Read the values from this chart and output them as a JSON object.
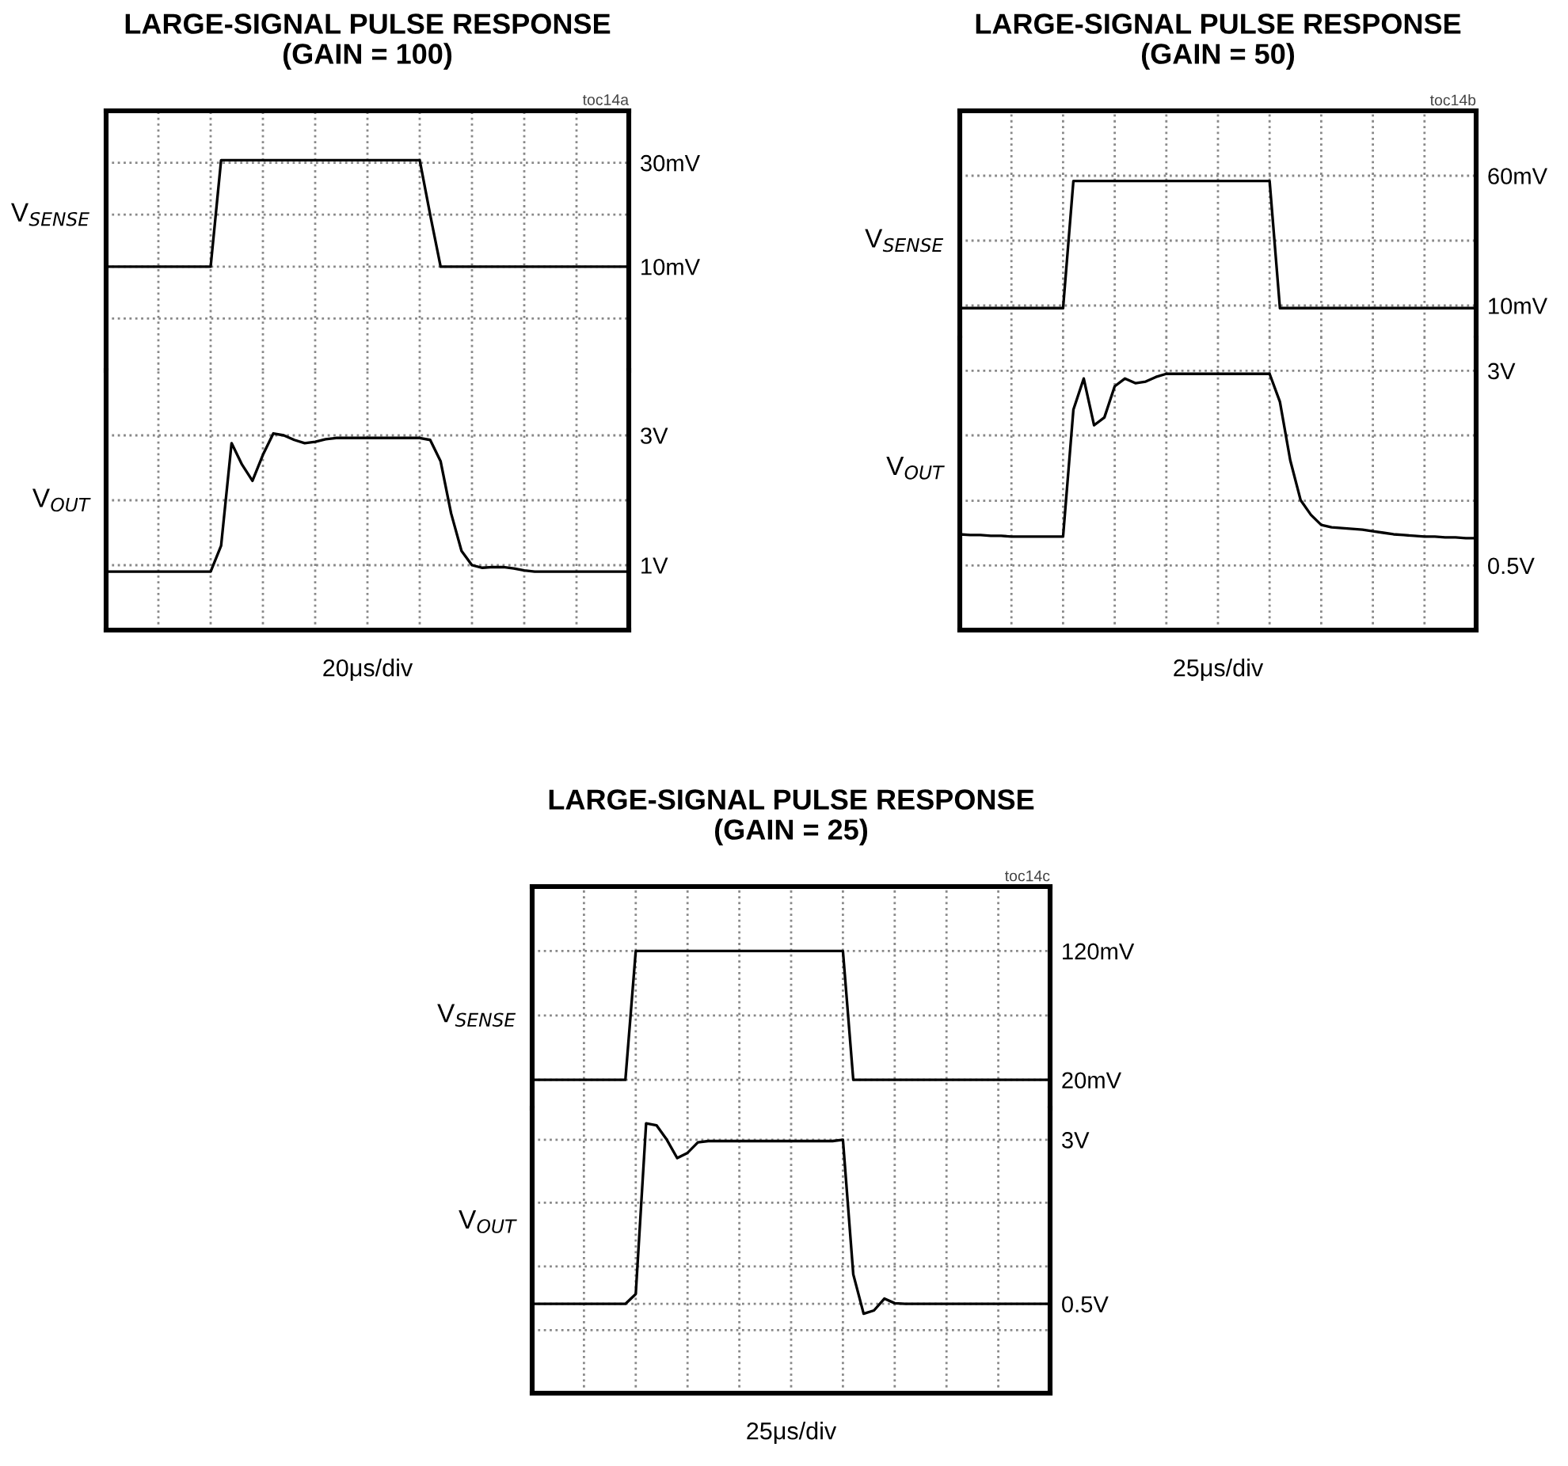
{
  "chart_data": [
    {
      "type": "line",
      "title": "LARGE-SIGNAL PULSE RESPONSE",
      "subtitle": "(GAIN = 100)",
      "annotations": [
        "toc14a"
      ],
      "categories": [
        null,
        null,
        null,
        null,
        null,
        null,
        null,
        null,
        null,
        null,
        null,
        null,
        null,
        null,
        null,
        null,
        null,
        null,
        null,
        null,
        null,
        null,
        null,
        null,
        null,
        null,
        null,
        null,
        null,
        null,
        null,
        null,
        null,
        null,
        null,
        null,
        null,
        null,
        null,
        null,
        null,
        null,
        null,
        null,
        null,
        null,
        null,
        null,
        null,
        null,
        null
      ],
      "ylim": [
        -10,
        40
      ],
      "yticks": [
        {
          "value": 0,
          "label": null
        },
        {
          "value": 10,
          "label": "10mV"
        },
        {
          "value": 20,
          "label": null
        },
        {
          "value": 30,
          "label": "30mV"
        }
      ],
      "grid": true,
      "tick_labels": "y",
      "line_style": "solid",
      "series": [
        {
          "name": "V$_{SENSE}$",
          "color": "#000000",
          "values": [
            10,
            10,
            10,
            10,
            10,
            10,
            10,
            10,
            10,
            10,
            10,
            30.5,
            30.5,
            30.5,
            30.5,
            30.5,
            30.5,
            30.5,
            30.5,
            30.5,
            30.5,
            30.5,
            30.5,
            30.5,
            30.5,
            30.5,
            30.5,
            30.5,
            30.5,
            30.5,
            30.5,
            20,
            10,
            10,
            10,
            10,
            10,
            10,
            10,
            10,
            10,
            10,
            10,
            10,
            10,
            10,
            10,
            10,
            10,
            10,
            10
          ]
        }
      ]
    },
    {
      "type": "line",
      "xlabel": "20μs/div",
      "categories": [
        null,
        null,
        null,
        null,
        null,
        null,
        null,
        null,
        null,
        null,
        null,
        null,
        null,
        null,
        null,
        null,
        null,
        null,
        null,
        null,
        null,
        null,
        null,
        null,
        null,
        null,
        null,
        null,
        null,
        null,
        null,
        null,
        null,
        null,
        null,
        null,
        null,
        null,
        null,
        null,
        null,
        null,
        null,
        null,
        null,
        null,
        null,
        null,
        null,
        null,
        null
      ],
      "ylim": [
        0,
        4
      ],
      "yticks": [
        {
          "value": 1,
          "label": "1V"
        },
        {
          "value": 2,
          "label": null
        },
        {
          "value": 3,
          "label": "3V"
        }
      ],
      "grid": true,
      "tick_labels": "y",
      "line_style": "solid",
      "series": [
        {
          "name": "V$_{OUT}$",
          "color": "#000000",
          "values": [
            0.9,
            0.9,
            0.9,
            0.9,
            0.9,
            0.9,
            0.9,
            0.9,
            0.9,
            0.9,
            0.9,
            1.3,
            2.88,
            2.55,
            2.3,
            2.7,
            3.03,
            3.0,
            2.93,
            2.88,
            2.9,
            2.94,
            2.96,
            2.96,
            2.96,
            2.96,
            2.96,
            2.96,
            2.96,
            2.96,
            2.96,
            2.93,
            2.6,
            1.8,
            1.22,
            1.0,
            0.96,
            0.97,
            0.97,
            0.95,
            0.92,
            0.9,
            0.9,
            0.9,
            0.9,
            0.9,
            0.9,
            0.9,
            0.9,
            0.9,
            0.9
          ]
        }
      ]
    },
    {
      "type": "line",
      "title": "LARGE-SIGNAL PULSE RESPONSE",
      "subtitle": "(GAIN = 50)",
      "annotations": [
        "toc14b"
      ],
      "categories": [
        null,
        null,
        null,
        null,
        null,
        null,
        null,
        null,
        null,
        null,
        null,
        null,
        null,
        null,
        null,
        null,
        null,
        null,
        null,
        null,
        null,
        null,
        null,
        null,
        null,
        null,
        null,
        null,
        null,
        null,
        null,
        null,
        null,
        null,
        null,
        null,
        null,
        null,
        null,
        null,
        null,
        null,
        null,
        null,
        null,
        null,
        null,
        null,
        null,
        null,
        null
      ],
      "ylim": [
        -2.5,
        85
      ],
      "yticks": [
        {
          "value": 10,
          "label": "10mV"
        },
        {
          "value": 35,
          "label": null
        },
        {
          "value": 60,
          "label": "60mV"
        }
      ],
      "grid": true,
      "tick_labels": "y",
      "line_style": "solid",
      "series": [
        {
          "name": "V$_{SENSE}$",
          "color": "#000000",
          "values": [
            9,
            9,
            9,
            9,
            9,
            9,
            9,
            9,
            9,
            9,
            9,
            58,
            58,
            58,
            58,
            58,
            58,
            58,
            58,
            58,
            58,
            58,
            58,
            58,
            58,
            58,
            58,
            58,
            58,
            58,
            58,
            9,
            9,
            9,
            9,
            9,
            9,
            9,
            9,
            9,
            9,
            9,
            9,
            9,
            9,
            9,
            9,
            9,
            9,
            9,
            9
          ]
        }
      ]
    },
    {
      "type": "line",
      "xlabel": "25μs/div",
      "categories": [
        null,
        null,
        null,
        null,
        null,
        null,
        null,
        null,
        null,
        null,
        null,
        null,
        null,
        null,
        null,
        null,
        null,
        null,
        null,
        null,
        null,
        null,
        null,
        null,
        null,
        null,
        null,
        null,
        null,
        null,
        null,
        null,
        null,
        null,
        null,
        null,
        null,
        null,
        null,
        null,
        null,
        null,
        null,
        null,
        null,
        null,
        null,
        null,
        null,
        null,
        null
      ],
      "ylim": [
        -0.33,
        3.42
      ],
      "yticks": [
        {
          "value": 0.5,
          "label": "0.5V"
        },
        {
          "value": 1.33,
          "label": null
        },
        {
          "value": 2.17,
          "label": null
        },
        {
          "value": 3,
          "label": "3V"
        }
      ],
      "grid": true,
      "tick_labels": "y",
      "line_style": "solid",
      "series": [
        {
          "name": "V$_{OUT}$",
          "color": "#000000",
          "values": [
            0.9,
            0.89,
            0.89,
            0.88,
            0.88,
            0.87,
            0.87,
            0.87,
            0.87,
            0.87,
            0.87,
            2.5,
            2.9,
            2.3,
            2.4,
            2.8,
            2.9,
            2.84,
            2.86,
            2.92,
            2.96,
            2.96,
            2.96,
            2.96,
            2.96,
            2.96,
            2.96,
            2.96,
            2.96,
            2.96,
            2.96,
            2.6,
            1.85,
            1.34,
            1.15,
            1.02,
            0.99,
            0.98,
            0.97,
            0.96,
            0.94,
            0.92,
            0.9,
            0.89,
            0.88,
            0.87,
            0.87,
            0.86,
            0.86,
            0.85,
            0.85
          ]
        }
      ]
    },
    {
      "type": "line",
      "title": "LARGE-SIGNAL PULSE RESPONSE",
      "subtitle": "(GAIN = 25)",
      "annotations": [
        "toc14c"
      ],
      "categories": [
        null,
        null,
        null,
        null,
        null,
        null,
        null,
        null,
        null,
        null,
        null,
        null,
        null,
        null,
        null,
        null,
        null,
        null,
        null,
        null,
        null,
        null,
        null,
        null,
        null,
        null,
        null,
        null,
        null,
        null,
        null,
        null,
        null,
        null,
        null,
        null,
        null,
        null,
        null,
        null,
        null,
        null,
        null,
        null,
        null,
        null,
        null,
        null,
        null,
        null,
        null
      ],
      "ylim": [
        -2,
        170
      ],
      "yticks": [
        {
          "value": 20,
          "label": "20mV"
        },
        {
          "value": 70,
          "label": null
        },
        {
          "value": 120,
          "label": "120mV"
        }
      ],
      "grid": true,
      "tick_labels": "y",
      "line_style": "solid",
      "series": [
        {
          "name": "V$_{SENSE}$",
          "color": "#000000",
          "values": [
            20,
            20,
            20,
            20,
            20,
            20,
            20,
            20,
            20,
            20,
            120,
            120,
            120,
            120,
            120,
            120,
            120,
            120,
            120,
            120,
            120,
            120,
            120,
            120,
            120,
            120,
            120,
            120,
            120,
            120,
            120,
            20,
            20,
            20,
            20,
            20,
            20,
            20,
            20,
            20,
            20,
            20,
            20,
            20,
            20,
            20,
            20,
            20,
            20,
            20,
            20
          ]
        }
      ]
    },
    {
      "type": "line",
      "xlabel": "25μs/div",
      "categories": [
        null,
        null,
        null,
        null,
        null,
        null,
        null,
        null,
        null,
        null,
        null,
        null,
        null,
        null,
        null,
        null,
        null,
        null,
        null,
        null,
        null,
        null,
        null,
        null,
        null,
        null,
        null,
        null,
        null,
        null,
        null,
        null,
        null,
        null,
        null,
        null,
        null,
        null,
        null,
        null,
        null,
        null,
        null,
        null,
        null,
        null,
        null,
        null,
        null,
        null,
        null
      ],
      "ylim": [
        -0.86,
        3.48
      ],
      "yticks": [
        {
          "value": 0.1,
          "label": null
        },
        {
          "value": 0.5,
          "label": "0.5V"
        },
        {
          "value": 1.07,
          "label": null
        },
        {
          "value": 2.04,
          "label": null
        },
        {
          "value": 3,
          "label": "3V"
        }
      ],
      "grid": true,
      "tick_labels": "y",
      "line_style": "solid",
      "series": [
        {
          "name": "V$_{OUT}$",
          "color": "#000000",
          "values": [
            0.5,
            0.5,
            0.5,
            0.5,
            0.5,
            0.5,
            0.5,
            0.5,
            0.5,
            0.5,
            0.65,
            3.25,
            3.22,
            3.0,
            2.72,
            2.8,
            2.96,
            2.98,
            2.98,
            2.98,
            2.98,
            2.98,
            2.98,
            2.98,
            2.98,
            2.98,
            2.98,
            2.98,
            2.98,
            2.98,
            3.0,
            0.95,
            0.35,
            0.4,
            0.58,
            0.51,
            0.5,
            0.5,
            0.5,
            0.5,
            0.5,
            0.5,
            0.5,
            0.5,
            0.5,
            0.5,
            0.5,
            0.5,
            0.5,
            0.5,
            0.5
          ]
        }
      ]
    }
  ]
}
